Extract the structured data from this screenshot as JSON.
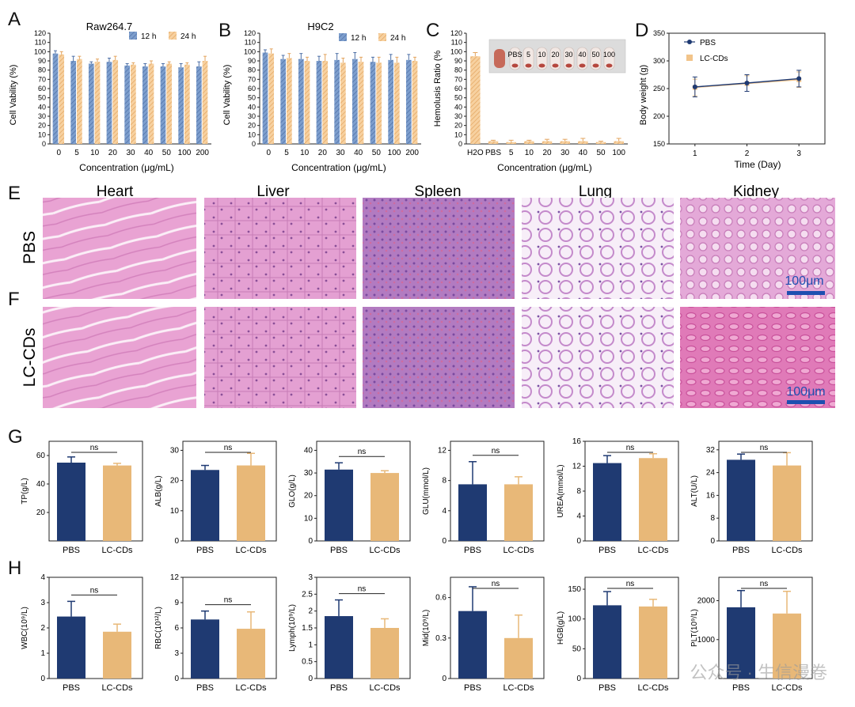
{
  "colors": {
    "blue_bar": "#6e93c4",
    "orange_bar": "#f2c48a",
    "navy_bar": "#1f3a72",
    "sand_bar": "#e8b878",
    "hema_he": "#e89fd0",
    "axis": "#222222"
  },
  "panels": {
    "A": {
      "letter": "A"
    },
    "B": {
      "letter": "B"
    },
    "C": {
      "letter": "C"
    },
    "D": {
      "letter": "D"
    },
    "E": {
      "letter": "E"
    },
    "F": {
      "letter": "F"
    },
    "G": {
      "letter": "G"
    },
    "H": {
      "letter": "H"
    }
  },
  "histology": {
    "columns": [
      "Heart",
      "Liver",
      "Spleen",
      "Lung",
      "Kidney"
    ],
    "rows": [
      "PBS",
      "LC-CDs"
    ],
    "scale_bar": "100μm"
  },
  "watermark": "公众号 · 生信漫卷",
  "chart_data": [
    {
      "id": "A",
      "type": "bar",
      "title": "Raw264.7",
      "xlabel": "Concentration (μg/mL)",
      "ylabel": "Cell Vability (%)",
      "ylim": [
        0,
        120
      ],
      "yticks": [
        0,
        10,
        20,
        30,
        40,
        50,
        60,
        70,
        80,
        90,
        100,
        110,
        120
      ],
      "legend": "top-right",
      "grid": false,
      "categories": [
        "0",
        "5",
        "10",
        "20",
        "30",
        "40",
        "50",
        "100",
        "200"
      ],
      "series": [
        {
          "name": "12 h",
          "values": [
            98,
            90,
            87,
            89,
            85,
            84,
            84,
            83,
            84
          ],
          "err": [
            3,
            5,
            2,
            4,
            2,
            3,
            3,
            4,
            5
          ]
        },
        {
          "name": "24 h",
          "values": [
            97,
            92,
            89,
            91,
            86,
            87,
            87,
            86,
            90
          ],
          "err": [
            3,
            3,
            3,
            4,
            2,
            3,
            2,
            2,
            5
          ]
        }
      ]
    },
    {
      "id": "B",
      "type": "bar",
      "title": "H9C2",
      "xlabel": "Concentration (μg/mL)",
      "ylabel": "Cell Vability (%)",
      "ylim": [
        0,
        120
      ],
      "yticks": [
        0,
        10,
        20,
        30,
        40,
        50,
        60,
        70,
        80,
        90,
        100,
        110,
        120
      ],
      "legend": "top-right",
      "grid": false,
      "categories": [
        "0",
        "5",
        "10",
        "20",
        "30",
        "40",
        "50",
        "100",
        "200"
      ],
      "series": [
        {
          "name": "12 h",
          "values": [
            99,
            92,
            92,
            90,
            91,
            92,
            89,
            91,
            91
          ],
          "err": [
            3,
            4,
            6,
            5,
            7,
            7,
            5,
            6,
            6
          ]
        },
        {
          "name": "24 h",
          "values": [
            98,
            93,
            90,
            90,
            88,
            89,
            88,
            88,
            90
          ],
          "err": [
            5,
            5,
            4,
            7,
            5,
            5,
            6,
            6,
            4
          ]
        }
      ]
    },
    {
      "id": "C",
      "type": "bar",
      "title": "",
      "xlabel": "Concentration (μg/mL)",
      "ylabel": "Hemolusis Ratio (%",
      "ylim": [
        0,
        120
      ],
      "yticks": [
        0,
        10,
        20,
        30,
        40,
        50,
        60,
        70,
        80,
        90,
        100,
        110,
        120
      ],
      "grid": false,
      "categories": [
        "H2O",
        "PBS",
        "5",
        "10",
        "20",
        "30",
        "40",
        "50",
        "100"
      ],
      "values": [
        95,
        3,
        2,
        3,
        3,
        3,
        3,
        2,
        3
      ],
      "err": [
        4,
        1,
        2,
        1,
        2,
        2,
        3,
        1,
        3
      ],
      "inset_labels": [
        "PBS",
        "5",
        "10",
        "20",
        "30",
        "40",
        "50",
        "100"
      ]
    },
    {
      "id": "D",
      "type": "line",
      "title": "",
      "xlabel": "Time (Day)",
      "ylabel": "Body weight (g)",
      "xlim": [
        0.5,
        3.5
      ],
      "ylim": [
        150,
        350
      ],
      "xticks": [
        1,
        2,
        3
      ],
      "yticks": [
        150,
        200,
        250,
        300,
        350
      ],
      "legend": "top-left",
      "grid": false,
      "x": [
        1,
        2,
        3
      ],
      "series": [
        {
          "name": "PBS",
          "values": [
            253,
            260,
            268
          ],
          "err": [
            18,
            15,
            15
          ]
        },
        {
          "name": "LC-CDs",
          "values": [
            252,
            259,
            266
          ],
          "err": [
            15,
            14,
            14
          ]
        }
      ]
    },
    {
      "id": "G1",
      "type": "bar",
      "ylabel": "TP(g/L)",
      "ylim": [
        0,
        70
      ],
      "yticks": [
        20,
        40,
        60
      ],
      "categories": [
        "PBS",
        "LC-CDs"
      ],
      "values": [
        55,
        53
      ],
      "err": [
        4,
        1.5
      ],
      "annotation": "ns"
    },
    {
      "id": "G2",
      "type": "bar",
      "ylabel": "ALB(g/L)",
      "ylim": [
        0,
        33
      ],
      "yticks": [
        0,
        10,
        20,
        30
      ],
      "categories": [
        "PBS",
        "LC-CDs"
      ],
      "values": [
        23.5,
        25
      ],
      "err": [
        1.5,
        4
      ],
      "annotation": "ns"
    },
    {
      "id": "G3",
      "type": "bar",
      "ylabel": "GLO(g/L)",
      "ylim": [
        0,
        44
      ],
      "yticks": [
        0,
        10,
        20,
        30,
        40
      ],
      "categories": [
        "PBS",
        "LC-CDs"
      ],
      "values": [
        31.5,
        30
      ],
      "err": [
        3,
        1
      ],
      "annotation": "ns"
    },
    {
      "id": "G4",
      "type": "bar",
      "ylabel": "GLU(mmol/L)",
      "ylim": [
        0,
        13.2
      ],
      "yticks": [
        0,
        4,
        8,
        12
      ],
      "categories": [
        "PBS",
        "LC-CDs"
      ],
      "values": [
        7.5,
        7.5
      ],
      "err": [
        3,
        1
      ],
      "annotation": "ns"
    },
    {
      "id": "G5",
      "type": "bar",
      "ylabel": "UREA(mmol/L)",
      "ylim": [
        0,
        16
      ],
      "yticks": [
        0,
        4,
        8,
        12,
        16
      ],
      "categories": [
        "PBS",
        "LC-CDs"
      ],
      "values": [
        12.5,
        13.3
      ],
      "err": [
        1.2,
        0.7
      ],
      "annotation": "ns"
    },
    {
      "id": "G6",
      "type": "bar",
      "ylabel": "ALT(U/L)",
      "ylim": [
        0,
        35
      ],
      "yticks": [
        0,
        8,
        16,
        24,
        32
      ],
      "categories": [
        "PBS",
        "LC-CDs"
      ],
      "values": [
        28.5,
        26.5
      ],
      "err": [
        2,
        4.5
      ],
      "annotation": "ns"
    },
    {
      "id": "H1",
      "type": "bar",
      "ylabel": "WBC(10⁹/L)",
      "ylim": [
        0,
        4
      ],
      "yticks": [
        0,
        1,
        2,
        3,
        4
      ],
      "categories": [
        "PBS",
        "LC-CDs"
      ],
      "values": [
        2.45,
        1.85
      ],
      "err": [
        0.6,
        0.3
      ],
      "annotation": "ns"
    },
    {
      "id": "H2",
      "type": "bar",
      "ylabel": "RBC(10¹²/L)",
      "ylim": [
        0,
        12
      ],
      "yticks": [
        0,
        3,
        6,
        9,
        12
      ],
      "categories": [
        "PBS",
        "LC-CDs"
      ],
      "values": [
        7,
        5.9
      ],
      "err": [
        1,
        2
      ],
      "annotation": "ns"
    },
    {
      "id": "H3",
      "type": "bar",
      "ylabel": "Lymph(10⁹/L)",
      "ylim": [
        0,
        3
      ],
      "yticks": [
        0,
        0.5,
        1.0,
        1.5,
        2.0,
        2.5,
        3.0
      ],
      "categories": [
        "PBS",
        "LC-CDs"
      ],
      "values": [
        1.85,
        1.5
      ],
      "err": [
        0.48,
        0.27
      ],
      "annotation": "ns"
    },
    {
      "id": "H4",
      "type": "bar",
      "ylabel": "Mid(10⁹/L)",
      "ylim": [
        0,
        0.75
      ],
      "yticks": [
        0,
        0.3,
        0.6
      ],
      "categories": [
        "PBS",
        "LC-CDs"
      ],
      "values": [
        0.5,
        0.3
      ],
      "err": [
        0.18,
        0.17
      ],
      "annotation": "ns"
    },
    {
      "id": "H5",
      "type": "bar",
      "ylabel": "HGB(g/L)",
      "ylim": [
        0,
        170
      ],
      "yticks": [
        0,
        50,
        100,
        150
      ],
      "categories": [
        "PBS",
        "LC-CDs"
      ],
      "values": [
        123,
        121
      ],
      "err": [
        23,
        12
      ],
      "annotation": "ns"
    },
    {
      "id": "H6",
      "type": "bar",
      "ylabel": "PLT(10⁹/L)",
      "ylim": [
        0,
        2600
      ],
      "yticks": [
        1000,
        2000
      ],
      "categories": [
        "PBS",
        "LC-CDs"
      ],
      "values": [
        1830,
        1670
      ],
      "err": [
        430,
        570
      ],
      "annotation": "ns"
    }
  ]
}
